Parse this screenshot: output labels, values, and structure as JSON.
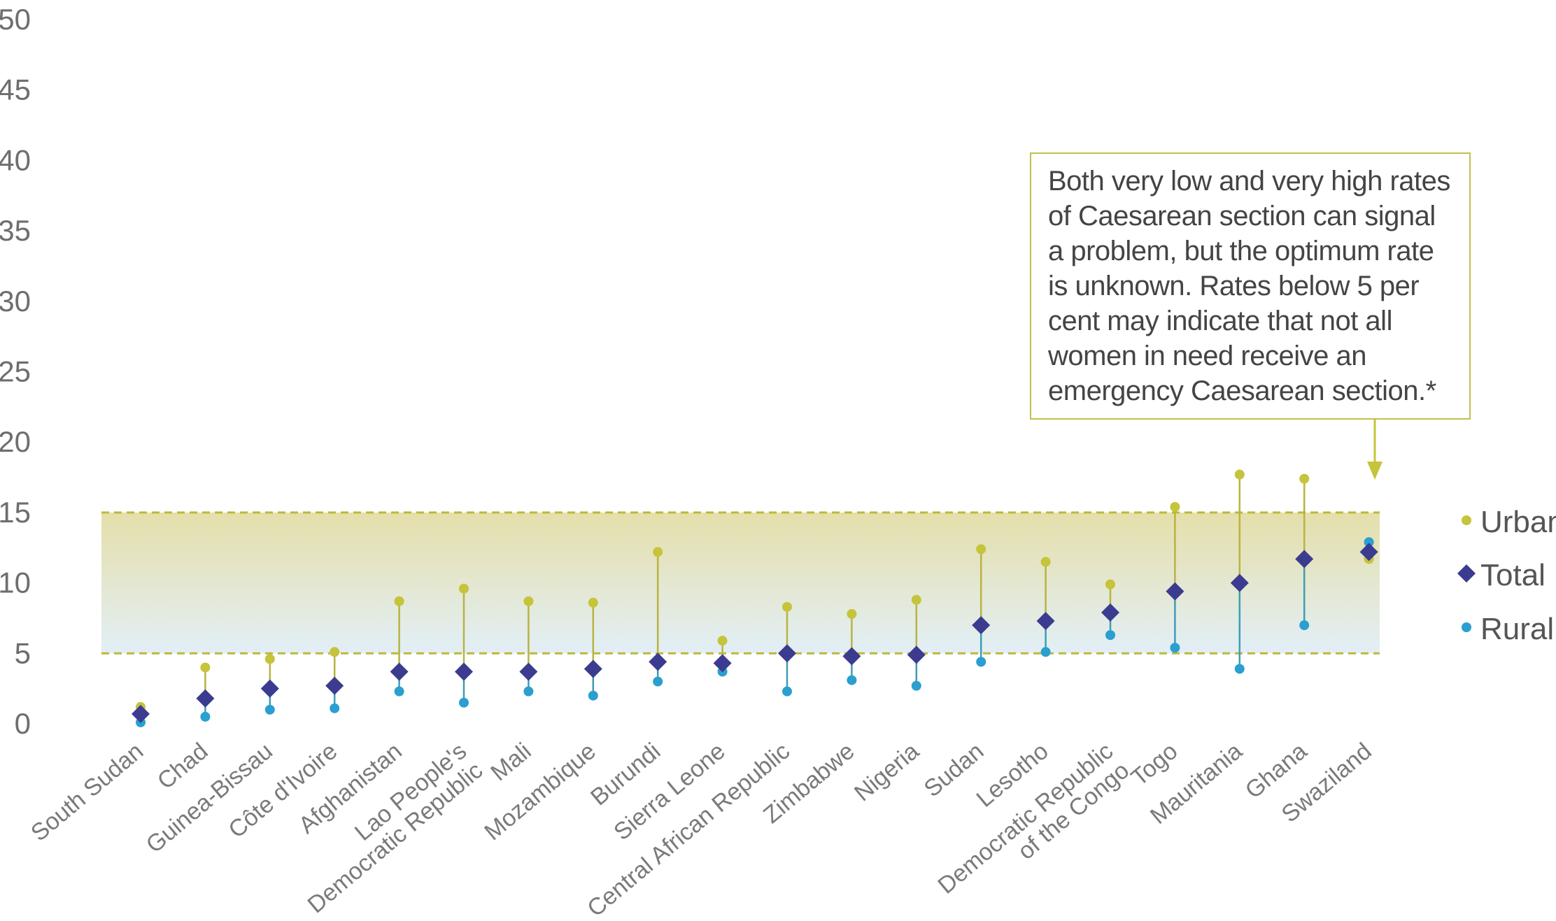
{
  "chart_data": {
    "type": "dot-range",
    "title": "",
    "xlabel": "",
    "ylabel": "",
    "ylim": [
      0,
      50
    ],
    "yticks": [
      0,
      5,
      10,
      15,
      20,
      25,
      30,
      35,
      40,
      45,
      50
    ],
    "grid": false,
    "legend_position": "right",
    "reference_band": {
      "from": 5,
      "to": 15
    },
    "categories": [
      [
        "South Sudan"
      ],
      [
        "Chad"
      ],
      [
        "Guinea-Bissau"
      ],
      [
        "Côte d'Ivoire"
      ],
      [
        "Afghanistan"
      ],
      [
        "Lao People's",
        "Democratic Republic"
      ],
      [
        "Mali"
      ],
      [
        "Mozambique"
      ],
      [
        "Burundi"
      ],
      [
        "Sierra Leone"
      ],
      [
        "Central African Republic"
      ],
      [
        "Zimbabwe"
      ],
      [
        "Nigeria"
      ],
      [
        "Sudan"
      ],
      [
        "Lesotho"
      ],
      [
        "Democratic Republic",
        "of the Congo"
      ],
      [
        "Togo"
      ],
      [
        "Mauritania"
      ],
      [
        "Ghana"
      ],
      [
        "Swaziland"
      ]
    ],
    "series": [
      {
        "name": "Urban",
        "color": "#c5c43a",
        "marker": "circle",
        "values": [
          1.2,
          4.0,
          4.6,
          5.1,
          8.7,
          9.6,
          8.7,
          8.6,
          12.2,
          5.9,
          8.3,
          7.8,
          8.8,
          12.4,
          11.5,
          9.9,
          15.4,
          17.7,
          17.4,
          11.7
        ]
      },
      {
        "name": "Total",
        "color": "#3b3b8f",
        "marker": "diamond",
        "values": [
          0.7,
          1.8,
          2.5,
          2.7,
          3.7,
          3.7,
          3.7,
          3.9,
          4.4,
          4.3,
          5.0,
          4.8,
          4.9,
          7.0,
          7.3,
          7.9,
          9.4,
          10.0,
          11.7,
          12.2
        ]
      },
      {
        "name": "Rural",
        "color": "#2a9fd0",
        "marker": "circle",
        "values": [
          0.1,
          0.5,
          1.0,
          1.1,
          2.3,
          1.5,
          2.3,
          2.0,
          3.0,
          3.7,
          2.3,
          3.1,
          2.7,
          4.4,
          5.1,
          6.3,
          5.4,
          3.9,
          7.0,
          12.9
        ]
      }
    ],
    "annotation": "Both very low and very high rates of Caesarean section can signal a problem, but the optimum rate is unknown. Rates below 5 per cent may indicate that not all women in need receive an emergency Caesarean section.*"
  }
}
